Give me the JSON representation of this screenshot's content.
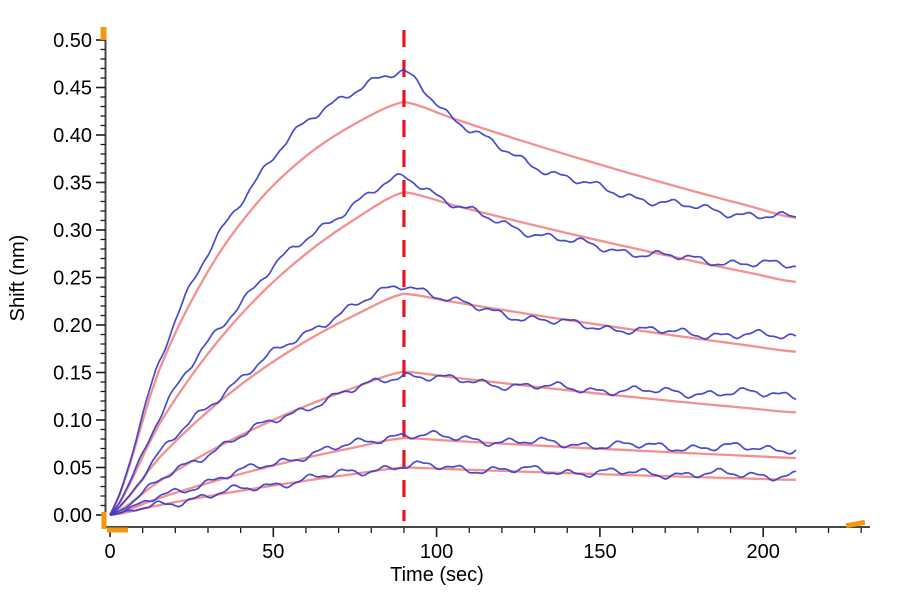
{
  "chart_data": {
    "type": "line",
    "title": "",
    "xlabel": "Time (sec)",
    "ylabel": "Shift (nm)",
    "xlim": [
      0,
      230
    ],
    "ylim": [
      0.0,
      0.5
    ],
    "grid": false,
    "legend": "none",
    "x_major_ticks": [
      0,
      50,
      100,
      150,
      200
    ],
    "x_tick_labels": [
      "0",
      "50",
      "100",
      "150",
      "200"
    ],
    "x_minor_step": 10,
    "y_major_ticks": [
      0.0,
      0.05,
      0.1,
      0.15,
      0.2,
      0.25,
      0.3,
      0.35,
      0.4,
      0.45,
      0.5
    ],
    "y_tick_labels": [
      "0.00",
      "0.05",
      "0.10",
      "0.15",
      "0.20",
      "0.25",
      "0.30",
      "0.35",
      "0.40",
      "0.45",
      "0.50"
    ],
    "y_minor_step": 0.01,
    "phase_boundary": {
      "time_sec": 90
    },
    "colors": {
      "data": "#3a3ccb",
      "fit": "#f08280",
      "boundary": "#e8141e",
      "axis_handle": "#f2970f",
      "axis": "#474747"
    },
    "axis_range_handles": [
      "y-axis-top",
      "origin",
      "x-axis-end"
    ],
    "sample_times": [
      0,
      15,
      30,
      45,
      60,
      75,
      90,
      105,
      120,
      135,
      150,
      165,
      180,
      195,
      210
    ],
    "series": [
      {
        "name": "data-1",
        "role": "data",
        "color": "#3a3ccb",
        "values": [
          0,
          0.1626,
          0.2743,
          0.355,
          0.412,
          0.448,
          0.465,
          0.4186,
          0.3853,
          0.3613,
          0.3441,
          0.3318,
          0.3231,
          0.3167,
          0.3122
        ]
      },
      {
        "name": "fit-1",
        "role": "fit",
        "color": "#f08280",
        "values": [
          0,
          0.1521,
          0.2566,
          0.3284,
          0.3778,
          0.4117,
          0.435,
          0.4175,
          0.4006,
          0.3844,
          0.3689,
          0.354,
          0.3396,
          0.3259,
          0.3127
        ]
      },
      {
        "name": "data-2",
        "role": "data",
        "color": "#3a3ccb",
        "values": [
          0,
          0.1023,
          0.1815,
          0.243,
          0.2906,
          0.3274,
          0.356,
          0.3276,
          0.3072,
          0.2925,
          0.282,
          0.2744,
          0.2689,
          0.265,
          0.2622
        ]
      },
      {
        "name": "fit-2",
        "role": "fit",
        "color": "#f08280",
        "values": [
          0,
          0.0951,
          0.1699,
          0.2287,
          0.275,
          0.3114,
          0.34,
          0.3263,
          0.3133,
          0.3008,
          0.2888,
          0.2773,
          0.2662,
          0.2556,
          0.2454
        ]
      },
      {
        "name": "data-3",
        "role": "data",
        "color": "#3a3ccb",
        "values": [
          0,
          0.0633,
          0.115,
          0.1573,
          0.1918,
          0.22,
          0.243,
          0.2249,
          0.2124,
          0.2038,
          0.1979,
          0.1939,
          0.1911,
          0.1892,
          0.1879
        ]
      },
      {
        "name": "fit-3",
        "role": "fit",
        "color": "#f08280",
        "values": [
          0,
          0.0599,
          0.1091,
          0.1497,
          0.183,
          0.2104,
          0.233,
          0.2243,
          0.216,
          0.2079,
          0.2002,
          0.1927,
          0.1855,
          0.1786,
          0.1719
        ]
      },
      {
        "name": "data-4",
        "role": "data",
        "color": "#3a3ccb",
        "values": [
          0,
          0.0353,
          0.0654,
          0.0912,
          0.1132,
          0.132,
          0.148,
          0.142,
          0.1376,
          0.1344,
          0.1319,
          0.1301,
          0.1288,
          0.1279,
          0.1271
        ]
      },
      {
        "name": "fit-4",
        "role": "fit",
        "color": "#f08280",
        "values": [
          0,
          0.0354,
          0.066,
          0.0922,
          0.1148,
          0.1343,
          0.151,
          0.1448,
          0.1389,
          0.1332,
          0.1277,
          0.1225,
          0.1174,
          0.1126,
          0.108
        ]
      },
      {
        "name": "data-5",
        "role": "data",
        "color": "#3a3ccb",
        "values": [
          0,
          0.0187,
          0.0353,
          0.0501,
          0.0631,
          0.0747,
          0.085,
          0.081,
          0.0779,
          0.0756,
          0.0738,
          0.0724,
          0.0714,
          0.0706,
          0.07
        ]
      },
      {
        "name": "fit-5",
        "role": "fit",
        "color": "#f08280",
        "values": [
          0,
          0.0178,
          0.0337,
          0.0477,
          0.0602,
          0.0712,
          0.081,
          0.078,
          0.0752,
          0.0724,
          0.0697,
          0.0672,
          0.0647,
          0.0623,
          0.06
        ]
      },
      {
        "name": "data-6",
        "role": "data",
        "color": "#3a3ccb",
        "values": [
          0,
          0.0107,
          0.0205,
          0.0295,
          0.0377,
          0.0452,
          0.052,
          0.0496,
          0.0477,
          0.0461,
          0.0449,
          0.0439,
          0.0431,
          0.0425,
          0.042
        ]
      },
      {
        "name": "fit-6",
        "role": "fit",
        "color": "#f08280",
        "values": [
          0,
          0.0103,
          0.0197,
          0.0283,
          0.0362,
          0.0434,
          0.05,
          0.0482,
          0.0464,
          0.0447,
          0.043,
          0.0414,
          0.0399,
          0.0384,
          0.037
        ]
      }
    ]
  }
}
